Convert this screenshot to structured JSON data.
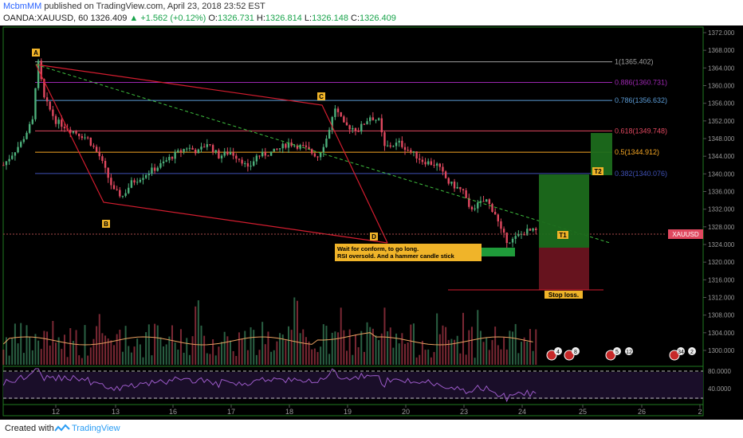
{
  "header": {
    "author": "McbmMM",
    "published": "published on TradingView.com, April 23, 2018 23:52 EST",
    "symbol_tf": "OANDA:XAUUSD, 60",
    "last": "1326.409",
    "change": "▲ +1.562 (+0.12%)",
    "o_label": "O:",
    "o": "1326.731",
    "h_label": "H:",
    "h": "1326.814",
    "l_label": "L:",
    "l": "1326.148",
    "c_label": "C:",
    "c": "1326.409"
  },
  "footer": {
    "created": "Created with",
    "brand": "TradingView"
  },
  "colors": {
    "bg": "#000000",
    "up": "#4caf7a",
    "down": "#e0485f",
    "harmonic": "#d31d2f",
    "border": "#2a8a2a"
  },
  "chart_data": {
    "type": "candlestick",
    "symbol": "OANDA:XAUUSD",
    "interval": "60",
    "ylim": [
      1296,
      1373
    ],
    "y_ticks": [
      "1372.000",
      "1368.000",
      "1364.000",
      "1360.000",
      "1356.000",
      "1352.000",
      "1348.000",
      "1344.000",
      "1340.000",
      "1336.000",
      "1332.000",
      "1328.000",
      "1324.000",
      "1320.000",
      "1316.000",
      "1312.000",
      "1308.000",
      "1304.000",
      "1300.000"
    ],
    "x_ticks": [
      "12",
      "13",
      "16",
      "17",
      "18",
      "19",
      "20",
      "23",
      "24",
      "25",
      "26",
      "2"
    ],
    "price_label": "XAUUSD",
    "fib_levels": [
      {
        "level": "1",
        "price": 1365.402,
        "label": "1(1365.402)",
        "color": "#9e9e9e"
      },
      {
        "level": "0.886",
        "price": 1360.731,
        "label": "0.886(1360.731)",
        "color": "#9c27b0"
      },
      {
        "level": "0.786",
        "price": 1356.632,
        "label": "0.786(1356.632)",
        "color": "#5b9bd5"
      },
      {
        "level": "0.618",
        "price": 1349.748,
        "label": "0.618(1349.748)",
        "color": "#e0485f"
      },
      {
        "level": "0.5",
        "price": 1344.912,
        "label": "0.5(1344.912)",
        "color": "#f5a623"
      },
      {
        "level": "0.382",
        "price": 1340.076,
        "label": "0.382(1340.076)",
        "color": "#3f51b5"
      }
    ],
    "pattern_points": [
      {
        "name": "A",
        "x": 0.5,
        "price": 1365.4
      },
      {
        "name": "B",
        "x": 2.1,
        "price": 1334.0
      },
      {
        "name": "C",
        "x": 7.5,
        "price": 1355.6
      },
      {
        "name": "D",
        "x": 9.6,
        "price": 1325.2
      }
    ],
    "target_labels": [
      "T1",
      "T2"
    ],
    "stop_label": "Stop loss.",
    "annotation": [
      "Wait for conform, to go long.",
      "RSI oversold. And a hammer candle stick"
    ],
    "rsi_levels": [
      "80.0000",
      "40.0000"
    ],
    "events": [
      "4",
      "8",
      "5",
      "12",
      "34",
      "2"
    ]
  }
}
